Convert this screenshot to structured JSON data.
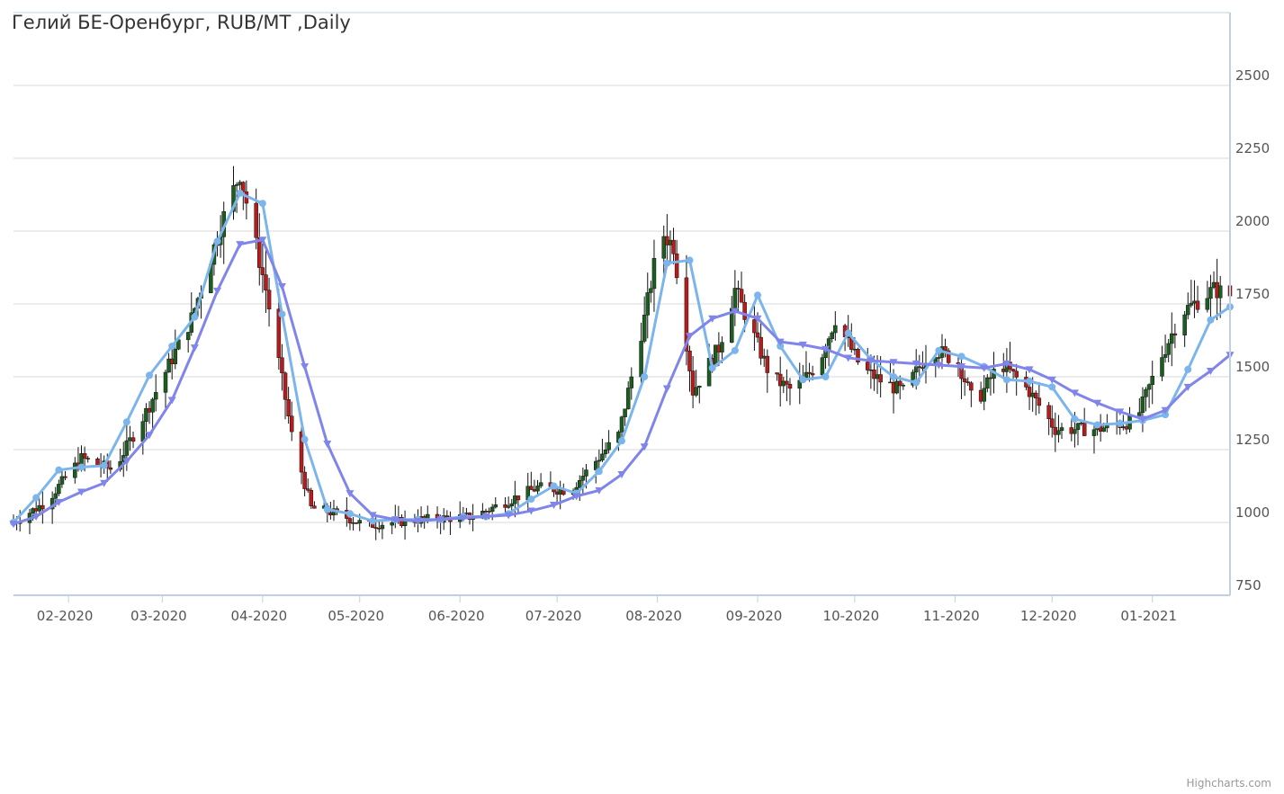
{
  "title": "Гелий БЕ-Оренбург, RUB/MT ,Daily",
  "credit": "Highcharts.com",
  "colors": {
    "up": "#1b5e20",
    "down": "#b71c1c",
    "wick": "#111111",
    "fast_ma": "#7cb5ec",
    "slow_ma": "#8085e9",
    "grid": "#d8d8d8",
    "axis": "#c0d0e0"
  },
  "chart_data": {
    "type": "candlestick",
    "title": "Гелий БЕ-Оренбург, RUB/MT ,Daily",
    "ylim": [
      750,
      2750
    ],
    "yticks": [
      750,
      1000,
      1250,
      1500,
      1750,
      2000,
      2250,
      2500
    ],
    "x_range": [
      "2020-01-15",
      "2021-01-25"
    ],
    "x_ticks": [
      {
        "date": "2020-02-01",
        "label": "02-2020"
      },
      {
        "date": "2020-03-01",
        "label": "03-2020"
      },
      {
        "date": "2020-04-01",
        "label": "04-2020"
      },
      {
        "date": "2020-05-01",
        "label": "05-2020"
      },
      {
        "date": "2020-06-01",
        "label": "06-2020"
      },
      {
        "date": "2020-07-01",
        "label": "07-2020"
      },
      {
        "date": "2020-08-01",
        "label": "08-2020"
      },
      {
        "date": "2020-09-01",
        "label": "09-2020"
      },
      {
        "date": "2020-10-01",
        "label": "10-2020"
      },
      {
        "date": "2020-11-01",
        "label": "11-2020"
      },
      {
        "date": "2020-12-01",
        "label": "12-2020"
      },
      {
        "date": "2021-01-01",
        "label": "01-2021"
      }
    ],
    "price_path": [
      [
        "2020-01-15",
        1000
      ],
      [
        "2020-01-25",
        1070
      ],
      [
        "2020-02-05",
        1220
      ],
      [
        "2020-02-15",
        1180
      ],
      [
        "2020-02-25",
        1380
      ],
      [
        "2020-03-10",
        1700
      ],
      [
        "2020-03-20",
        2050
      ],
      [
        "2020-03-25",
        2200
      ],
      [
        "2020-04-02",
        1800
      ],
      [
        "2020-04-10",
        1300
      ],
      [
        "2020-04-16",
        1050
      ],
      [
        "2020-04-24",
        1030
      ],
      [
        "2020-05-03",
        990
      ],
      [
        "2020-05-20",
        1010
      ],
      [
        "2020-06-05",
        1020
      ],
      [
        "2020-06-25",
        1120
      ],
      [
        "2020-07-05",
        1110
      ],
      [
        "2020-07-20",
        1300
      ],
      [
        "2020-07-28",
        1700
      ],
      [
        "2020-08-02",
        2000
      ],
      [
        "2020-08-06",
        1950
      ],
      [
        "2020-08-12",
        1450
      ],
      [
        "2020-08-20",
        1600
      ],
      [
        "2020-08-25",
        1800
      ],
      [
        "2020-09-05",
        1500
      ],
      [
        "2020-09-12",
        1450
      ],
      [
        "2020-09-20",
        1550
      ],
      [
        "2020-09-25",
        1700
      ],
      [
        "2020-10-03",
        1530
      ],
      [
        "2020-10-10",
        1480
      ],
      [
        "2020-10-16",
        1450
      ],
      [
        "2020-10-25",
        1600
      ],
      [
        "2020-11-02",
        1550
      ],
      [
        "2020-11-07",
        1400
      ],
      [
        "2020-11-15",
        1550
      ],
      [
        "2020-11-24",
        1450
      ],
      [
        "2020-12-02",
        1320
      ],
      [
        "2020-12-15",
        1320
      ],
      [
        "2020-12-27",
        1350
      ],
      [
        "2021-01-03",
        1550
      ],
      [
        "2021-01-10",
        1720
      ],
      [
        "2021-01-20",
        1800
      ],
      [
        "2021-01-25",
        1780
      ]
    ],
    "series": [
      {
        "name": "",
        "style": "line-circle",
        "points": [
          [
            "2020-01-15",
            1000
          ],
          [
            "2020-01-22",
            1085
          ],
          [
            "2020-01-29",
            1180
          ],
          [
            "2020-02-05",
            1190
          ],
          [
            "2020-02-12",
            1195
          ],
          [
            "2020-02-19",
            1345
          ],
          [
            "2020-02-26",
            1505
          ],
          [
            "2020-03-04",
            1605
          ],
          [
            "2020-03-11",
            1705
          ],
          [
            "2020-03-18",
            1965
          ],
          [
            "2020-03-25",
            2130
          ],
          [
            "2020-04-01",
            2095
          ],
          [
            "2020-04-07",
            1715
          ],
          [
            "2020-04-14",
            1285
          ],
          [
            "2020-04-21",
            1045
          ],
          [
            "2020-04-28",
            1030
          ],
          [
            "2020-05-05",
            1005
          ],
          [
            "2020-05-12",
            1010
          ],
          [
            "2020-05-19",
            1010
          ],
          [
            "2020-05-26",
            1010
          ],
          [
            "2020-06-02",
            1020
          ],
          [
            "2020-06-09",
            1020
          ],
          [
            "2020-06-16",
            1030
          ],
          [
            "2020-06-23",
            1080
          ],
          [
            "2020-06-30",
            1125
          ],
          [
            "2020-07-07",
            1100
          ],
          [
            "2020-07-14",
            1175
          ],
          [
            "2020-07-21",
            1280
          ],
          [
            "2020-07-28",
            1500
          ],
          [
            "2020-08-04",
            1890
          ],
          [
            "2020-08-11",
            1900
          ],
          [
            "2020-08-18",
            1530
          ],
          [
            "2020-08-25",
            1590
          ],
          [
            "2020-09-01",
            1780
          ],
          [
            "2020-09-08",
            1605
          ],
          [
            "2020-09-15",
            1490
          ],
          [
            "2020-09-22",
            1500
          ],
          [
            "2020-09-29",
            1650
          ],
          [
            "2020-10-06",
            1560
          ],
          [
            "2020-10-13",
            1500
          ],
          [
            "2020-10-20",
            1480
          ],
          [
            "2020-10-27",
            1590
          ],
          [
            "2020-11-03",
            1570
          ],
          [
            "2020-11-10",
            1535
          ],
          [
            "2020-11-17",
            1490
          ],
          [
            "2020-11-24",
            1485
          ],
          [
            "2020-12-01",
            1465
          ],
          [
            "2020-12-08",
            1355
          ],
          [
            "2020-12-15",
            1335
          ],
          [
            "2020-12-22",
            1340
          ],
          [
            "2020-12-29",
            1350
          ],
          [
            "2021-01-05",
            1370
          ],
          [
            "2021-01-12",
            1525
          ],
          [
            "2021-01-19",
            1695
          ],
          [
            "2021-01-25",
            1740
          ]
        ]
      },
      {
        "name": "",
        "style": "line-triangle",
        "points": [
          [
            "2020-01-15",
            995
          ],
          [
            "2020-01-22",
            1020
          ],
          [
            "2020-01-29",
            1070
          ],
          [
            "2020-02-05",
            1105
          ],
          [
            "2020-02-12",
            1135
          ],
          [
            "2020-02-19",
            1210
          ],
          [
            "2020-02-26",
            1300
          ],
          [
            "2020-03-04",
            1420
          ],
          [
            "2020-03-11",
            1600
          ],
          [
            "2020-03-18",
            1795
          ],
          [
            "2020-03-25",
            1955
          ],
          [
            "2020-04-01",
            1970
          ],
          [
            "2020-04-07",
            1810
          ],
          [
            "2020-04-14",
            1535
          ],
          [
            "2020-04-21",
            1270
          ],
          [
            "2020-04-28",
            1100
          ],
          [
            "2020-05-05",
            1025
          ],
          [
            "2020-05-12",
            1010
          ],
          [
            "2020-05-19",
            1005
          ],
          [
            "2020-05-26",
            1010
          ],
          [
            "2020-06-02",
            1015
          ],
          [
            "2020-06-09",
            1020
          ],
          [
            "2020-06-16",
            1025
          ],
          [
            "2020-06-23",
            1040
          ],
          [
            "2020-06-30",
            1060
          ],
          [
            "2020-07-07",
            1090
          ],
          [
            "2020-07-14",
            1110
          ],
          [
            "2020-07-21",
            1165
          ],
          [
            "2020-07-28",
            1260
          ],
          [
            "2020-08-04",
            1460
          ],
          [
            "2020-08-11",
            1640
          ],
          [
            "2020-08-18",
            1700
          ],
          [
            "2020-08-25",
            1725
          ],
          [
            "2020-09-01",
            1700
          ],
          [
            "2020-09-08",
            1620
          ],
          [
            "2020-09-15",
            1610
          ],
          [
            "2020-09-22",
            1595
          ],
          [
            "2020-09-29",
            1565
          ],
          [
            "2020-10-06",
            1555
          ],
          [
            "2020-10-13",
            1550
          ],
          [
            "2020-10-20",
            1545
          ],
          [
            "2020-10-27",
            1540
          ],
          [
            "2020-11-03",
            1535
          ],
          [
            "2020-11-10",
            1530
          ],
          [
            "2020-11-17",
            1545
          ],
          [
            "2020-11-24",
            1525
          ],
          [
            "2020-12-01",
            1490
          ],
          [
            "2020-12-08",
            1445
          ],
          [
            "2020-12-15",
            1410
          ],
          [
            "2020-12-22",
            1380
          ],
          [
            "2020-12-29",
            1355
          ],
          [
            "2021-01-05",
            1385
          ],
          [
            "2021-01-12",
            1465
          ],
          [
            "2021-01-19",
            1520
          ],
          [
            "2021-01-25",
            1575
          ]
        ]
      }
    ]
  }
}
